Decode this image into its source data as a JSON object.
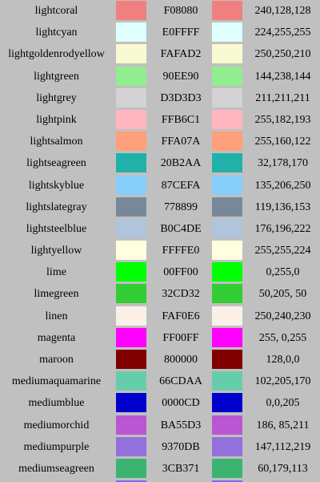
{
  "colors": [
    {
      "name": "lightcoral",
      "hex": "F08080",
      "rgb": "240,128,128",
      "swatch": "#F08080"
    },
    {
      "name": "lightcyan",
      "hex": "E0FFFF",
      "rgb": "224,255,255",
      "swatch": "#E0FFFF"
    },
    {
      "name": "lightgoldenrodyellow",
      "hex": "FAFAD2",
      "rgb": "250,250,210",
      "swatch": "#FAFAD2"
    },
    {
      "name": "lightgreen",
      "hex": "90EE90",
      "rgb": "144,238,144",
      "swatch": "#90EE90"
    },
    {
      "name": "lightgrey",
      "hex": "D3D3D3",
      "rgb": "211,211,211",
      "swatch": "#D3D3D3"
    },
    {
      "name": "lightpink",
      "hex": "FFB6C1",
      "rgb": "255,182,193",
      "swatch": "#FFB6C1"
    },
    {
      "name": "lightsalmon",
      "hex": "FFA07A",
      "rgb": "255,160,122",
      "swatch": "#FFA07A"
    },
    {
      "name": "lightseagreen",
      "hex": "20B2AA",
      "rgb": "32,178,170",
      "swatch": "#20B2AA"
    },
    {
      "name": "lightskyblue",
      "hex": "87CEFA",
      "rgb": "135,206,250",
      "swatch": "#87CEFA"
    },
    {
      "name": "lightslategray",
      "hex": "778899",
      "rgb": "119,136,153",
      "swatch": "#778899"
    },
    {
      "name": "lightsteelblue",
      "hex": "B0C4DE",
      "rgb": "176,196,222",
      "swatch": "#B0C4DE"
    },
    {
      "name": "lightyellow",
      "hex": "FFFFE0",
      "rgb": "255,255,224",
      "swatch": "#FFFFE0"
    },
    {
      "name": "lime",
      "hex": "00FF00",
      "rgb": "0,255,0",
      "swatch": "#00FF00"
    },
    {
      "name": "limegreen",
      "hex": "32CD32",
      "rgb": "50,205, 50",
      "swatch": "#32CD32"
    },
    {
      "name": "linen",
      "hex": "FAF0E6",
      "rgb": "250,240,230",
      "swatch": "#FAF0E6"
    },
    {
      "name": "magenta",
      "hex": "FF00FF",
      "rgb": "255, 0,255",
      "swatch": "#FF00FF"
    },
    {
      "name": "maroon",
      "hex": "800000",
      "rgb": "128,0,0",
      "swatch": "#800000"
    },
    {
      "name": "mediumaquamarine",
      "hex": "66CDAA",
      "rgb": "102,205,170",
      "swatch": "#66CDAA"
    },
    {
      "name": "mediumblue",
      "hex": "0000CD",
      "rgb": "0,0,205",
      "swatch": "#0000CD"
    },
    {
      "name": "mediumorchid",
      "hex": "BA55D3",
      "rgb": "186, 85,211",
      "swatch": "#BA55D3"
    },
    {
      "name": "mediumpurple",
      "hex": "9370DB",
      "rgb": "147,112,219",
      "swatch": "#9370DB"
    },
    {
      "name": "mediumseagreen",
      "hex": "3CB371",
      "rgb": "60,179,113",
      "swatch": "#3CB371"
    }
  ],
  "next_row_swatch": "#7B68EE",
  "page_background": "#C0C0C0"
}
